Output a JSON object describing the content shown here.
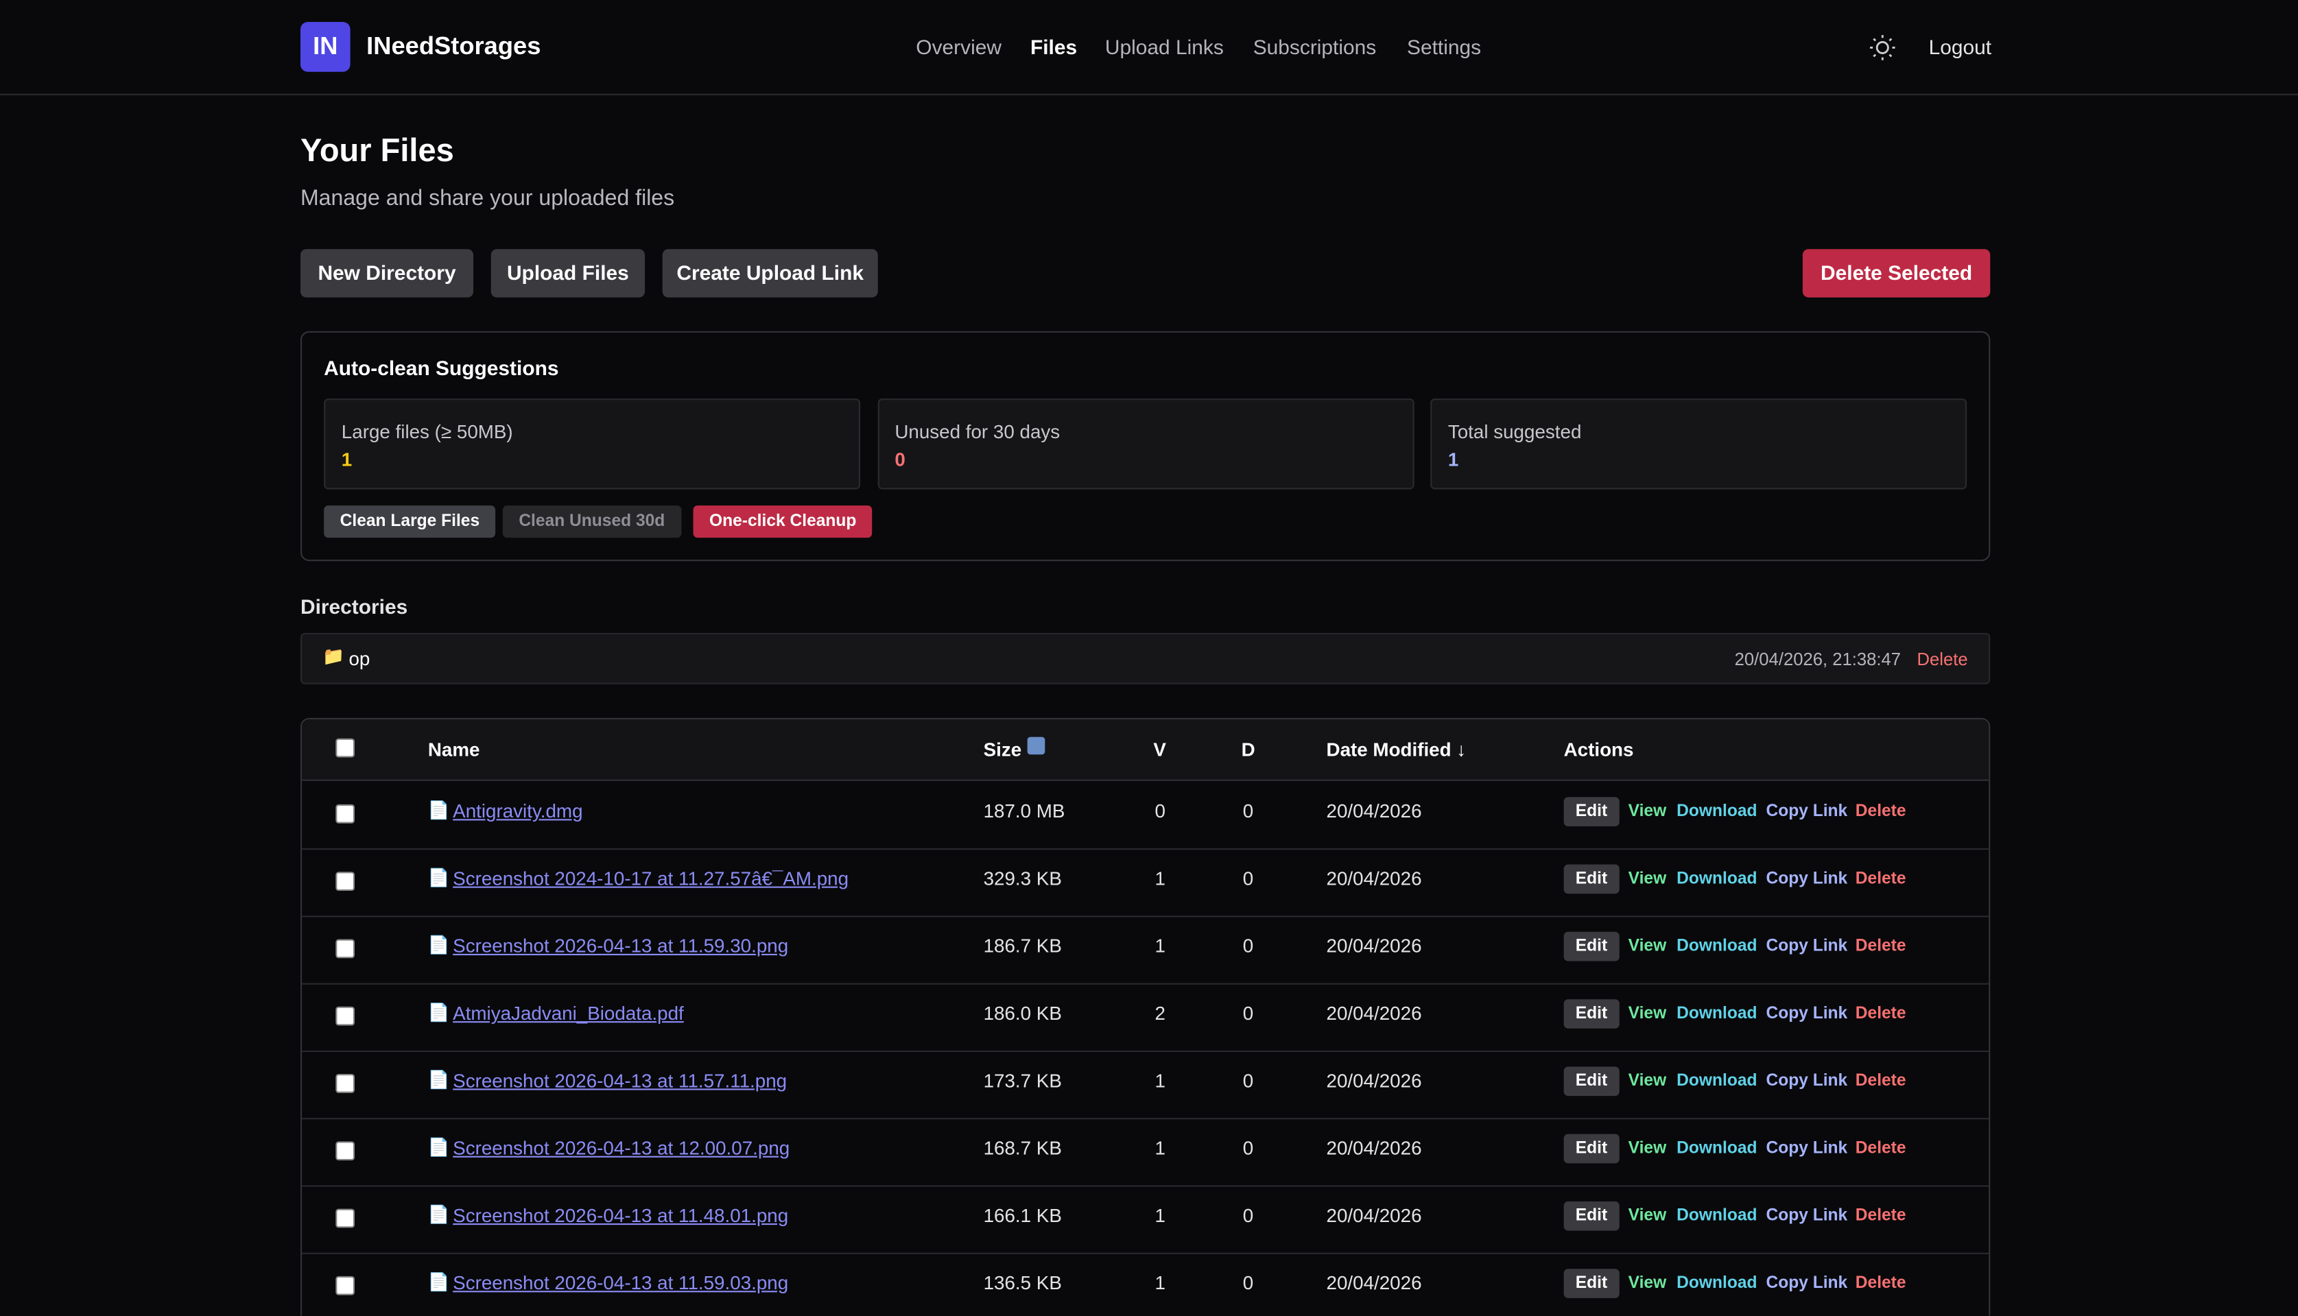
{
  "nav": {
    "brand_mark": "IN",
    "brand": "INeedStorages",
    "links": [
      "Overview",
      "Files",
      "Upload Links",
      "Subscriptions",
      "Settings"
    ],
    "active": 1,
    "logout": "Logout"
  },
  "header": {
    "title": "Your Files",
    "subtitle": "Manage and share your uploaded files"
  },
  "toolbar": {
    "buttons": [
      "New Directory",
      "Upload Files",
      "Create Upload Link"
    ],
    "danger": "Delete Selected"
  },
  "autoclean": {
    "title": "Auto-clean Suggestions",
    "cards": [
      {
        "label": "Large files (≥ 50MB)",
        "value": "1",
        "color": "#facc15"
      },
      {
        "label": "Unused for 30 days",
        "value": "0",
        "color": "#f87171"
      },
      {
        "label": "Total suggested",
        "value": "1",
        "color": "#a5b4fc"
      }
    ],
    "buttons": [
      "Clean Large Files",
      "Clean Unused 30d",
      "One-click Cleanup"
    ]
  },
  "directories": {
    "title": "Directories",
    "items": [
      {
        "name": "op",
        "date": "20/04/2026, 21:38:47",
        "action": "Delete"
      }
    ]
  },
  "table": {
    "columns": [
      "Name",
      "Size",
      "V",
      "D",
      "Date Modified ↓",
      "Actions"
    ],
    "actions": [
      "Edit",
      "View",
      "Download",
      "Copy Link",
      "Delete"
    ],
    "rows": [
      [
        "Antigravity.dmg",
        "187.0 MB",
        "0",
        "0",
        "20/04/2026"
      ],
      [
        "Screenshot 2024-10-17 at 11.27.57â€¯AM.png",
        "329.3 KB",
        "1",
        "0",
        "20/04/2026"
      ],
      [
        "Screenshot 2026-04-13 at 11.59.30.png",
        "186.7 KB",
        "1",
        "0",
        "20/04/2026"
      ],
      [
        "AtmiyaJadvani_Biodata.pdf",
        "186.0 KB",
        "2",
        "0",
        "20/04/2026"
      ],
      [
        "Screenshot 2026-04-13 at 11.57.11.png",
        "173.7 KB",
        "1",
        "0",
        "20/04/2026"
      ],
      [
        "Screenshot 2026-04-13 at 12.00.07.png",
        "168.7 KB",
        "1",
        "0",
        "20/04/2026"
      ],
      [
        "Screenshot 2026-04-13 at 11.48.01.png",
        "166.1 KB",
        "1",
        "0",
        "20/04/2026"
      ],
      [
        "Screenshot 2026-04-13 at 11.59.03.png",
        "136.5 KB",
        "1",
        "0",
        "20/04/2026"
      ]
    ]
  }
}
